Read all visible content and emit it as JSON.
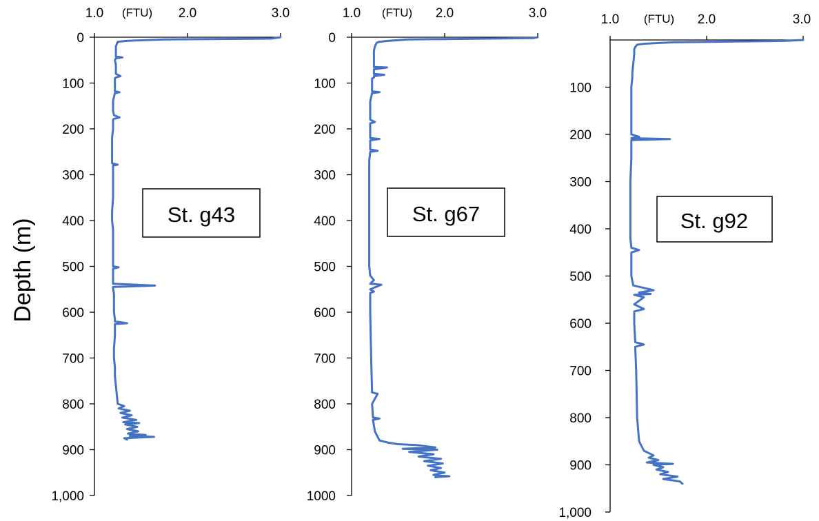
{
  "ylabel": "Depth (m)",
  "colors": {
    "series": "#4472C4",
    "axis": "#000000",
    "box_border": "#000000"
  },
  "chart_data": [
    {
      "type": "line",
      "station_label": "St. g43",
      "x_unit": "(FTU)",
      "xlim": [
        1.0,
        3.0
      ],
      "x_ticks": [
        "1.0",
        "2.0",
        "3.0"
      ],
      "ylim": [
        0,
        1000
      ],
      "y_ticks": [
        "0",
        "100",
        "200",
        "300",
        "400",
        "500",
        "600",
        "700",
        "800",
        "900",
        "1,000"
      ],
      "grid": false,
      "series": [
        {
          "depth": [
            0,
            3,
            5,
            8,
            10,
            15,
            20,
            30,
            42,
            44,
            46,
            50,
            60,
            70,
            80,
            85,
            88,
            90,
            100,
            110,
            118,
            120,
            122,
            130,
            140,
            150,
            160,
            170,
            175,
            178,
            180,
            200,
            220,
            240,
            260,
            275,
            278,
            280,
            290,
            300,
            320,
            350,
            380,
            400,
            420,
            450,
            480,
            500,
            502,
            505,
            520,
            538,
            542,
            545,
            548,
            560,
            580,
            600,
            615,
            620,
            624,
            626,
            628,
            632,
            650,
            680,
            700,
            720,
            740,
            760,
            780,
            800,
            805,
            810,
            815,
            820,
            825,
            830,
            835,
            840,
            842,
            845,
            850,
            855,
            860,
            865,
            868,
            870,
            872,
            875,
            878
          ],
          "turbidity": [
            3.0,
            2.9,
            1.75,
            1.35,
            1.25,
            1.24,
            1.23,
            1.23,
            1.23,
            1.3,
            1.23,
            1.22,
            1.23,
            1.23,
            1.23,
            1.28,
            1.23,
            1.22,
            1.22,
            1.22,
            1.22,
            1.27,
            1.22,
            1.21,
            1.2,
            1.2,
            1.2,
            1.21,
            1.27,
            1.21,
            1.2,
            1.2,
            1.19,
            1.19,
            1.19,
            1.19,
            1.25,
            1.2,
            1.2,
            1.2,
            1.2,
            1.2,
            1.19,
            1.19,
            1.2,
            1.2,
            1.2,
            1.2,
            1.26,
            1.2,
            1.2,
            1.2,
            1.65,
            1.2,
            1.2,
            1.21,
            1.21,
            1.21,
            1.22,
            1.22,
            1.35,
            1.22,
            1.22,
            1.22,
            1.22,
            1.21,
            1.21,
            1.22,
            1.22,
            1.23,
            1.24,
            1.25,
            1.32,
            1.26,
            1.38,
            1.28,
            1.4,
            1.3,
            1.45,
            1.31,
            1.48,
            1.33,
            1.46,
            1.35,
            1.47,
            1.36,
            1.55,
            1.38,
            1.64,
            1.32,
            1.35
          ]
        }
      ]
    },
    {
      "type": "line",
      "station_label": "St. g67",
      "x_unit": "(FTU)",
      "xlim": [
        1.0,
        3.0
      ],
      "x_ticks": [
        "1.0",
        "2.0",
        "3.0"
      ],
      "ylim": [
        0,
        1000
      ],
      "y_ticks": [
        "0",
        "100",
        "200",
        "300",
        "400",
        "500",
        "600",
        "700",
        "800",
        "900",
        "1000"
      ],
      "grid": false,
      "series": [
        {
          "depth": [
            0,
            2,
            5,
            8,
            10,
            12,
            20,
            30,
            40,
            50,
            60,
            65,
            66,
            70,
            72,
            75,
            80,
            82,
            85,
            88,
            90,
            100,
            110,
            118,
            120,
            122,
            140,
            160,
            180,
            185,
            188,
            200,
            220,
            222,
            225,
            245,
            248,
            250,
            270,
            280,
            300,
            350,
            400,
            450,
            500,
            520,
            530,
            538,
            540,
            550,
            555,
            558,
            600,
            700,
            775,
            778,
            800,
            830,
            832,
            835,
            860,
            880,
            885,
            888,
            890,
            895,
            898,
            900,
            905,
            910,
            915,
            920,
            925,
            930,
            935,
            940,
            945,
            950,
            955,
            958,
            960
          ],
          "turbidity": [
            3.0,
            2.95,
            1.6,
            1.4,
            1.3,
            1.27,
            1.25,
            1.24,
            1.24,
            1.24,
            1.24,
            1.24,
            1.38,
            1.24,
            1.24,
            1.24,
            1.24,
            1.35,
            1.24,
            1.24,
            1.22,
            1.22,
            1.22,
            1.22,
            1.3,
            1.22,
            1.2,
            1.2,
            1.2,
            1.25,
            1.2,
            1.2,
            1.2,
            1.3,
            1.2,
            1.2,
            1.28,
            1.2,
            1.19,
            1.19,
            1.19,
            1.19,
            1.19,
            1.19,
            1.19,
            1.2,
            1.24,
            1.2,
            1.32,
            1.2,
            1.24,
            1.2,
            1.2,
            1.21,
            1.22,
            1.28,
            1.22,
            1.23,
            1.3,
            1.23,
            1.25,
            1.3,
            1.4,
            1.5,
            1.7,
            1.9,
            1.55,
            1.92,
            1.62,
            1.88,
            1.72,
            1.96,
            1.78,
            1.98,
            1.82,
            1.96,
            1.85,
            2.0,
            1.88,
            2.05,
            1.9
          ]
        }
      ]
    },
    {
      "type": "line",
      "station_label": "St. g92",
      "x_unit": "(FTU)",
      "xlim": [
        1.0,
        3.0
      ],
      "x_ticks": [
        "1.0",
        "2.0",
        "3.0"
      ],
      "ylim": [
        0,
        1000
      ],
      "y_ticks": [
        "100",
        "200",
        "300",
        "400",
        "500",
        "600",
        "700",
        "800",
        "900",
        "1,000"
      ],
      "grid": false,
      "series": [
        {
          "depth": [
            0,
            2,
            5,
            8,
            10,
            15,
            20,
            30,
            50,
            70,
            80,
            100,
            150,
            200,
            205,
            208,
            210,
            212,
            215,
            250,
            300,
            350,
            400,
            420,
            440,
            445,
            450,
            500,
            520,
            530,
            535,
            538,
            540,
            545,
            560,
            570,
            575,
            600,
            640,
            645,
            650,
            700,
            800,
            850,
            870,
            880,
            885,
            890,
            895,
            898,
            900,
            905,
            910,
            915,
            920,
            925,
            930,
            935,
            940
          ],
          "turbidity": [
            3.0,
            2.8,
            1.65,
            1.35,
            1.28,
            1.26,
            1.25,
            1.25,
            1.24,
            1.23,
            1.23,
            1.22,
            1.22,
            1.22,
            1.3,
            1.22,
            1.62,
            1.22,
            1.22,
            1.22,
            1.21,
            1.21,
            1.21,
            1.21,
            1.22,
            1.3,
            1.22,
            1.22,
            1.24,
            1.45,
            1.3,
            1.42,
            1.25,
            1.35,
            1.25,
            1.35,
            1.25,
            1.25,
            1.26,
            1.35,
            1.26,
            1.27,
            1.28,
            1.3,
            1.35,
            1.45,
            1.4,
            1.5,
            1.38,
            1.65,
            1.45,
            1.55,
            1.48,
            1.6,
            1.52,
            1.7,
            1.55,
            1.72,
            1.75
          ]
        }
      ]
    }
  ]
}
